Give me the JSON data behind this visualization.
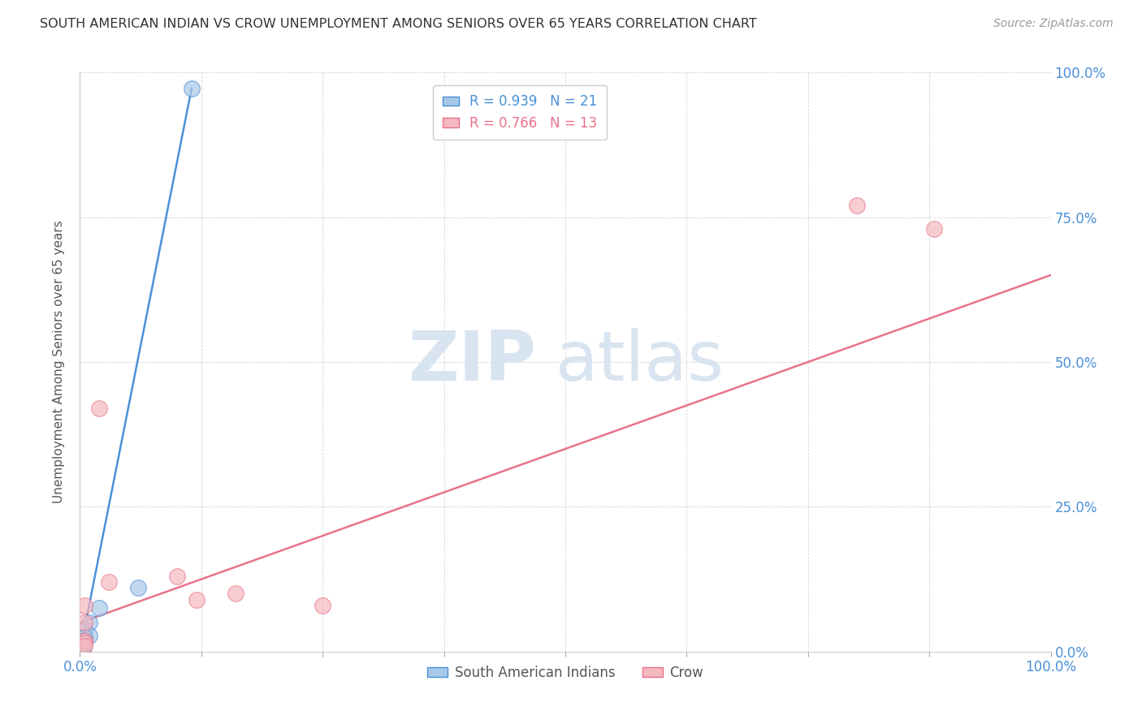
{
  "title": "SOUTH AMERICAN INDIAN VS CROW UNEMPLOYMENT AMONG SENIORS OVER 65 YEARS CORRELATION CHART",
  "source": "Source: ZipAtlas.com",
  "ylabel": "Unemployment Among Seniors over 65 years",
  "xlim": [
    0,
    1.0
  ],
  "ylim": [
    0,
    1.0
  ],
  "xticks": [
    0.0,
    0.125,
    0.25,
    0.375,
    0.5,
    0.625,
    0.75,
    0.875,
    1.0
  ],
  "ytick_labels": [
    "0.0%",
    "25.0%",
    "50.0%",
    "75.0%",
    "100.0%"
  ],
  "yticks": [
    0.0,
    0.25,
    0.5,
    0.75,
    1.0
  ],
  "blue_R": "0.939",
  "blue_N": "21",
  "pink_R": "0.766",
  "pink_N": "13",
  "blue_color": "#a8c8e8",
  "blue_edge_color": "#4a90d9",
  "blue_line_color": "#4a90d9",
  "pink_color": "#f4b8c0",
  "pink_edge_color": "#e8728a",
  "pink_line_color": "#e8728a",
  "tick_color": "#4a90d9",
  "background_color": "#ffffff",
  "grid_color": "#d0d0d0",
  "blue_scatter_x": [
    0.06,
    0.02,
    0.01,
    0.005,
    0.01,
    0.005,
    0.005,
    0.003,
    0.003,
    0.003,
    0.003,
    0.002,
    0.002,
    0.002,
    0.001,
    0.001,
    0.001,
    0.001,
    0.0,
    0.0,
    0.115
  ],
  "blue_scatter_y": [
    0.11,
    0.075,
    0.05,
    0.038,
    0.028,
    0.025,
    0.018,
    0.01,
    0.008,
    0.005,
    0.004,
    0.003,
    0.002,
    0.002,
    0.001,
    0.001,
    0.0,
    0.0,
    0.0,
    0.0,
    0.972
  ],
  "pink_scatter_x": [
    0.02,
    0.03,
    0.005,
    0.005,
    0.1,
    0.12,
    0.16,
    0.8,
    0.88,
    0.25,
    0.005,
    0.005,
    0.005
  ],
  "pink_scatter_y": [
    0.42,
    0.12,
    0.08,
    0.05,
    0.13,
    0.09,
    0.1,
    0.77,
    0.73,
    0.08,
    0.02,
    0.015,
    0.01
  ],
  "blue_trendline_x": [
    0.0,
    0.115
  ],
  "blue_trendline_y": [
    0.0,
    0.972
  ],
  "pink_trendline_x": [
    0.0,
    1.0
  ],
  "pink_trendline_y": [
    0.05,
    0.65
  ],
  "legend_label_blue": "South American Indians",
  "legend_label_pink": "Crow"
}
